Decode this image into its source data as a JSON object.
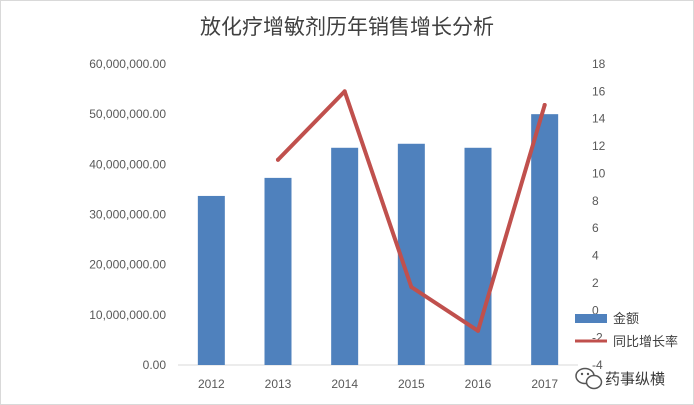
{
  "chart_data": {
    "type": "bar",
    "title": "放化疗增敏剂历年销售增长分析",
    "categories": [
      "2012",
      "2013",
      "2014",
      "2015",
      "2016",
      "2017"
    ],
    "series": [
      {
        "name": "金额",
        "type": "bar",
        "axis": "left",
        "color": "#4f81bd",
        "values": [
          33700000,
          37300000,
          43300000,
          44100000,
          43300000,
          50000000
        ]
      },
      {
        "name": "同比增长率",
        "type": "line",
        "axis": "right",
        "color": "#c0504d",
        "values": [
          null,
          11,
          16,
          1.7,
          -1.5,
          15
        ]
      }
    ],
    "y_left": {
      "ylim": [
        0,
        60000000
      ],
      "ticks": [
        "0.00",
        "10,000,000.00",
        "20,000,000.00",
        "30,000,000.00",
        "40,000,000.00",
        "50,000,000.00",
        "60,000,000.00"
      ]
    },
    "y_right": {
      "ylim": [
        -4,
        18
      ],
      "ticks": [
        "-4",
        "-2",
        "0",
        "2",
        "4",
        "6",
        "8",
        "10",
        "12",
        "14",
        "16",
        "18"
      ]
    },
    "legend_position": "bottom-right",
    "grid": false
  },
  "watermark": {
    "text": "药事纵横",
    "icon": "wechat-icon"
  }
}
